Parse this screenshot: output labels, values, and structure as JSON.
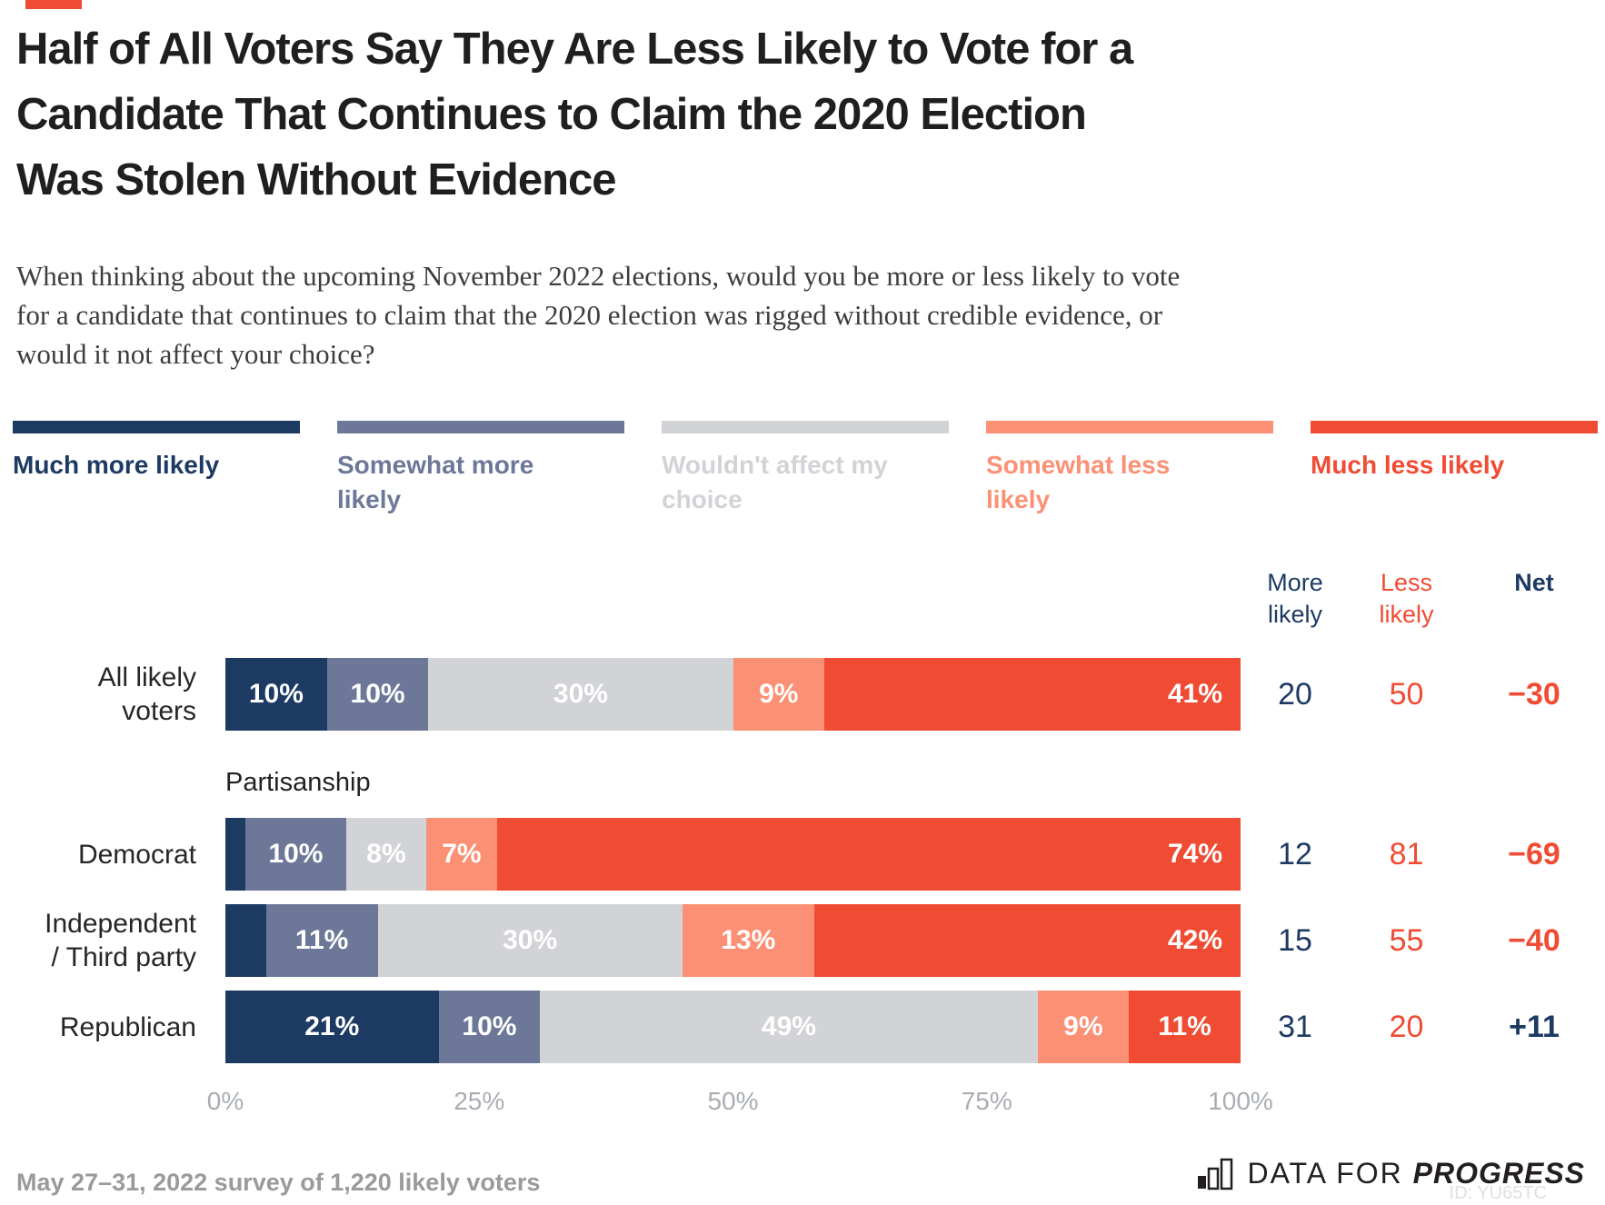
{
  "accent_color": "#f04b33",
  "title": "Half of All Voters Say They Are Less Likely to Vote for a\nCandidate That Continues to Claim the 2020 Election\nWas Stolen Without Evidence",
  "subtitle": "When thinking about the upcoming November 2022 elections, would you be more or less likely to vote\nfor a candidate that continues to claim that the 2020 election was rigged without credible evidence, or\nwould it not affect your choice?",
  "legend": {
    "items": [
      {
        "label": "Much more likely",
        "color": "#1d3a63"
      },
      {
        "label": "Somewhat more\nlikely",
        "color": "#6d7899"
      },
      {
        "label": "Wouldn't affect my\nchoice",
        "color": "#d1d3d6"
      },
      {
        "label": "Somewhat less\nlikely",
        "color": "#fb9074"
      },
      {
        "label": "Much less likely",
        "color": "#f04b33"
      }
    ]
  },
  "columns": {
    "more": "More\nlikely",
    "less": "Less\nlikely",
    "net": "Net"
  },
  "section_label": "Partisanship",
  "colors": {
    "positive": "#1d3a63",
    "negative": "#f04b33"
  },
  "chart_data": {
    "type": "bar",
    "stacked": true,
    "orientation": "horizontal",
    "xlim": [
      0,
      100
    ],
    "x_ticks": [
      "0%",
      "25%",
      "50%",
      "75%",
      "100%"
    ],
    "categories": [
      "All likely\nvoters",
      "Democrat",
      "Independent\n/ Third party",
      "Republican"
    ],
    "series": [
      {
        "name": "Much more likely",
        "color": "#1d3a63",
        "values": [
          10,
          2,
          4,
          21
        ],
        "labels": [
          "10%",
          "",
          "",
          "21%"
        ]
      },
      {
        "name": "Somewhat more likely",
        "color": "#6d7899",
        "values": [
          10,
          10,
          11,
          10
        ],
        "labels": [
          "10%",
          "10%",
          "11%",
          "10%"
        ]
      },
      {
        "name": "Wouldn't affect my choice",
        "color": "#d1d3d6",
        "values": [
          30,
          8,
          30,
          49
        ],
        "labels": [
          "30%",
          "8%",
          "30%",
          "49%"
        ]
      },
      {
        "name": "Somewhat less likely",
        "color": "#fb9074",
        "values": [
          9,
          7,
          13,
          9
        ],
        "labels": [
          "9%",
          "7%",
          "13%",
          "9%"
        ]
      },
      {
        "name": "Much less likely",
        "color": "#f04b33",
        "values": [
          41,
          74,
          42,
          11
        ],
        "labels": [
          "41%",
          "74%",
          "42%",
          "11%"
        ],
        "label_aligns": [
          "right",
          "right",
          "right",
          "center"
        ]
      }
    ],
    "summary": {
      "more_likely": [
        "20",
        "12",
        "15",
        "31"
      ],
      "less_likely": [
        "50",
        "81",
        "55",
        "20"
      ],
      "net": [
        "−30",
        "−69",
        "−40",
        "+11"
      ]
    },
    "section_label_before_row": 1
  },
  "footer": {
    "note": "May 27–31, 2022 survey of 1,220 likely voters",
    "logo_part1": "DATA FOR ",
    "logo_part2": "PROGRESS",
    "watermark": "ID: YU65TC"
  }
}
